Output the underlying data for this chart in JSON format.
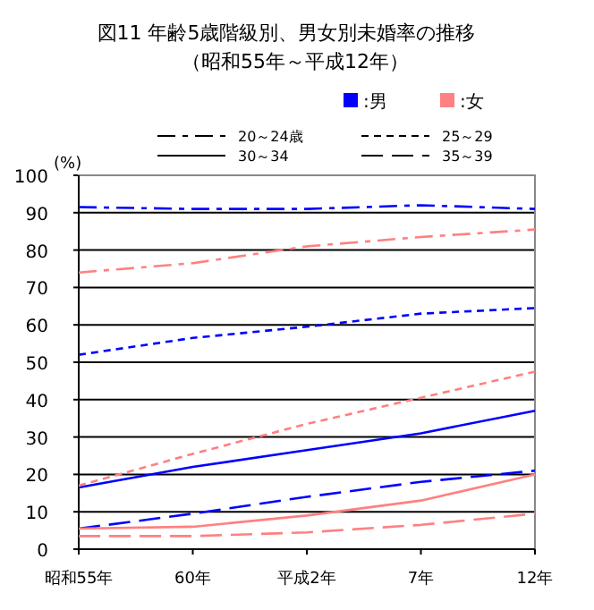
{
  "chart_data": {
    "type": "line",
    "title": "図11 年齢5歳階級別、男女別未婚率の推移",
    "subtitle": "（昭和55年～平成12年）",
    "ylabel": "(%)",
    "categories": [
      "昭和55年",
      "60年",
      "平成2年",
      "7年",
      "12年"
    ],
    "ylim": [
      0,
      100
    ],
    "yticks": [
      0,
      10,
      20,
      30,
      40,
      50,
      60,
      70,
      80,
      90,
      100
    ],
    "grid": "y",
    "marker": "none",
    "annotations": [
      ":男",
      ":女",
      "20～24歳",
      "25～29",
      "30～34",
      "35～39"
    ],
    "series": [
      {
        "color": "#0000ff",
        "line_style": "dashdot",
        "values": [
          91.5,
          91,
          91,
          92,
          91
        ]
      },
      {
        "color": "#0000ff",
        "line_style": "dashed",
        "values": [
          52,
          56.5,
          59.5,
          63,
          64.5
        ]
      },
      {
        "color": "#0000ff",
        "line_style": "solid",
        "values": [
          16.5,
          22,
          26.5,
          31,
          37
        ]
      },
      {
        "color": "#0000ff",
        "line_style": "longdash",
        "values": [
          5.5,
          9.5,
          14,
          18,
          21
        ]
      },
      {
        "color": "#ff8080",
        "line_style": "dashdot",
        "values": [
          74,
          76.5,
          81,
          83.5,
          85.5
        ]
      },
      {
        "color": "#ff8080",
        "line_style": "dashed",
        "values": [
          17,
          25.5,
          33.5,
          40.5,
          47.5
        ]
      },
      {
        "color": "#ff8080",
        "line_style": "solid",
        "values": [
          5.5,
          6,
          9,
          13,
          20
        ]
      },
      {
        "color": "#ff8080",
        "line_style": "longdash",
        "values": [
          3.5,
          3.5,
          4.5,
          6.5,
          9.5
        ]
      }
    ]
  }
}
